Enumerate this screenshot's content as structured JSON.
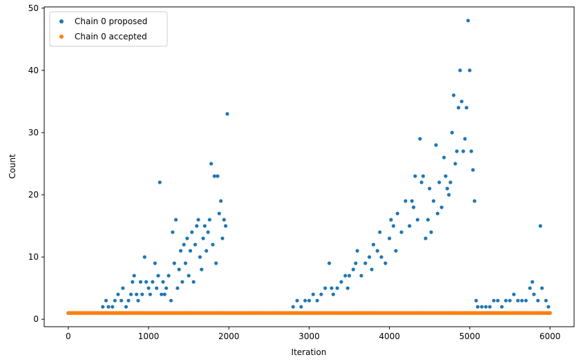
{
  "chart_data": {
    "type": "scatter",
    "title": "",
    "xlabel": "Iteration",
    "ylabel": "Count",
    "xlim": [
      -300,
      6300
    ],
    "ylim": [
      -1.2,
      50.2
    ],
    "xticks": [
      0,
      1000,
      2000,
      3000,
      4000,
      5000,
      6000
    ],
    "yticks": [
      0,
      10,
      20,
      30,
      40,
      50
    ],
    "grid": false,
    "legend_position": "top-left",
    "series": [
      {
        "name": "Chain 0 proposed",
        "color": "#1f77b4",
        "marker": "circle",
        "points": [
          [
            0,
            1
          ],
          [
            100,
            1
          ],
          [
            200,
            1
          ],
          [
            300,
            1
          ],
          [
            400,
            1
          ],
          [
            430,
            2
          ],
          [
            470,
            3
          ],
          [
            500,
            2
          ],
          [
            550,
            2
          ],
          [
            580,
            3
          ],
          [
            620,
            4
          ],
          [
            660,
            3
          ],
          [
            680,
            5
          ],
          [
            720,
            2
          ],
          [
            750,
            3
          ],
          [
            780,
            4
          ],
          [
            800,
            6
          ],
          [
            820,
            7
          ],
          [
            850,
            4
          ],
          [
            870,
            3
          ],
          [
            900,
            6
          ],
          [
            920,
            4
          ],
          [
            950,
            10
          ],
          [
            970,
            6
          ],
          [
            1000,
            5
          ],
          [
            1020,
            4
          ],
          [
            1050,
            6
          ],
          [
            1080,
            9
          ],
          [
            1100,
            5
          ],
          [
            1120,
            7
          ],
          [
            1140,
            22
          ],
          [
            1160,
            4
          ],
          [
            1180,
            6
          ],
          [
            1200,
            4
          ],
          [
            1220,
            5
          ],
          [
            1250,
            7
          ],
          [
            1280,
            3
          ],
          [
            1300,
            14
          ],
          [
            1320,
            9
          ],
          [
            1340,
            16
          ],
          [
            1360,
            5
          ],
          [
            1380,
            8
          ],
          [
            1400,
            11
          ],
          [
            1420,
            6
          ],
          [
            1440,
            12
          ],
          [
            1460,
            9
          ],
          [
            1480,
            13
          ],
          [
            1500,
            7
          ],
          [
            1520,
            11
          ],
          [
            1540,
            14
          ],
          [
            1560,
            6
          ],
          [
            1580,
            12
          ],
          [
            1600,
            15
          ],
          [
            1620,
            16
          ],
          [
            1640,
            10
          ],
          [
            1660,
            8
          ],
          [
            1680,
            13
          ],
          [
            1700,
            15
          ],
          [
            1720,
            11
          ],
          [
            1740,
            14
          ],
          [
            1760,
            16
          ],
          [
            1780,
            25
          ],
          [
            1800,
            12
          ],
          [
            1820,
            23
          ],
          [
            1840,
            9
          ],
          [
            1860,
            23
          ],
          [
            1880,
            17
          ],
          [
            1900,
            19
          ],
          [
            1920,
            13
          ],
          [
            1940,
            16
          ],
          [
            1960,
            15
          ],
          [
            1980,
            33
          ],
          [
            2800,
            2
          ],
          [
            2850,
            3
          ],
          [
            2900,
            2
          ],
          [
            2950,
            3
          ],
          [
            3000,
            3
          ],
          [
            3050,
            4
          ],
          [
            3100,
            3
          ],
          [
            3150,
            4
          ],
          [
            3200,
            5
          ],
          [
            3250,
            9
          ],
          [
            3280,
            5
          ],
          [
            3300,
            4
          ],
          [
            3350,
            5
          ],
          [
            3400,
            6
          ],
          [
            3450,
            7
          ],
          [
            3480,
            5
          ],
          [
            3500,
            7
          ],
          [
            3550,
            8
          ],
          [
            3580,
            9
          ],
          [
            3600,
            11
          ],
          [
            3650,
            7
          ],
          [
            3700,
            9
          ],
          [
            3750,
            10
          ],
          [
            3780,
            8
          ],
          [
            3800,
            12
          ],
          [
            3850,
            11
          ],
          [
            3880,
            14
          ],
          [
            3900,
            10
          ],
          [
            3950,
            9
          ],
          [
            4000,
            13
          ],
          [
            4020,
            16
          ],
          [
            4050,
            15
          ],
          [
            4080,
            11
          ],
          [
            4100,
            17
          ],
          [
            4150,
            14
          ],
          [
            4200,
            19
          ],
          [
            4250,
            15
          ],
          [
            4280,
            19
          ],
          [
            4300,
            18
          ],
          [
            4320,
            23
          ],
          [
            4350,
            16
          ],
          [
            4380,
            29
          ],
          [
            4400,
            22
          ],
          [
            4420,
            23
          ],
          [
            4450,
            13
          ],
          [
            4480,
            16
          ],
          [
            4500,
            21
          ],
          [
            4520,
            14
          ],
          [
            4550,
            19
          ],
          [
            4580,
            28
          ],
          [
            4600,
            17
          ],
          [
            4620,
            22
          ],
          [
            4650,
            18
          ],
          [
            4680,
            26
          ],
          [
            4700,
            23
          ],
          [
            4720,
            21
          ],
          [
            4740,
            20
          ],
          [
            4760,
            22
          ],
          [
            4780,
            30
          ],
          [
            4800,
            36
          ],
          [
            4820,
            25
          ],
          [
            4840,
            27
          ],
          [
            4860,
            34
          ],
          [
            4880,
            40
          ],
          [
            4900,
            35
          ],
          [
            4920,
            27
          ],
          [
            4940,
            29
          ],
          [
            4960,
            34
          ],
          [
            4980,
            48
          ],
          [
            5000,
            40
          ],
          [
            5020,
            27
          ],
          [
            5040,
            24
          ],
          [
            5060,
            19
          ],
          [
            5080,
            3
          ],
          [
            5100,
            2
          ],
          [
            5150,
            2
          ],
          [
            5200,
            2
          ],
          [
            5250,
            2
          ],
          [
            5300,
            3
          ],
          [
            5350,
            3
          ],
          [
            5400,
            2
          ],
          [
            5450,
            3
          ],
          [
            5500,
            3
          ],
          [
            5550,
            4
          ],
          [
            5600,
            3
          ],
          [
            5650,
            3
          ],
          [
            5700,
            3
          ],
          [
            5750,
            5
          ],
          [
            5780,
            6
          ],
          [
            5800,
            4
          ],
          [
            5850,
            3
          ],
          [
            5880,
            15
          ],
          [
            5900,
            5
          ],
          [
            5950,
            3
          ],
          [
            5980,
            2
          ]
        ]
      },
      {
        "name": "Chain 0 accepted",
        "color": "#ff7f0e",
        "marker": "circle",
        "x_range": [
          0,
          6000
        ],
        "constant_y": 1
      }
    ]
  }
}
